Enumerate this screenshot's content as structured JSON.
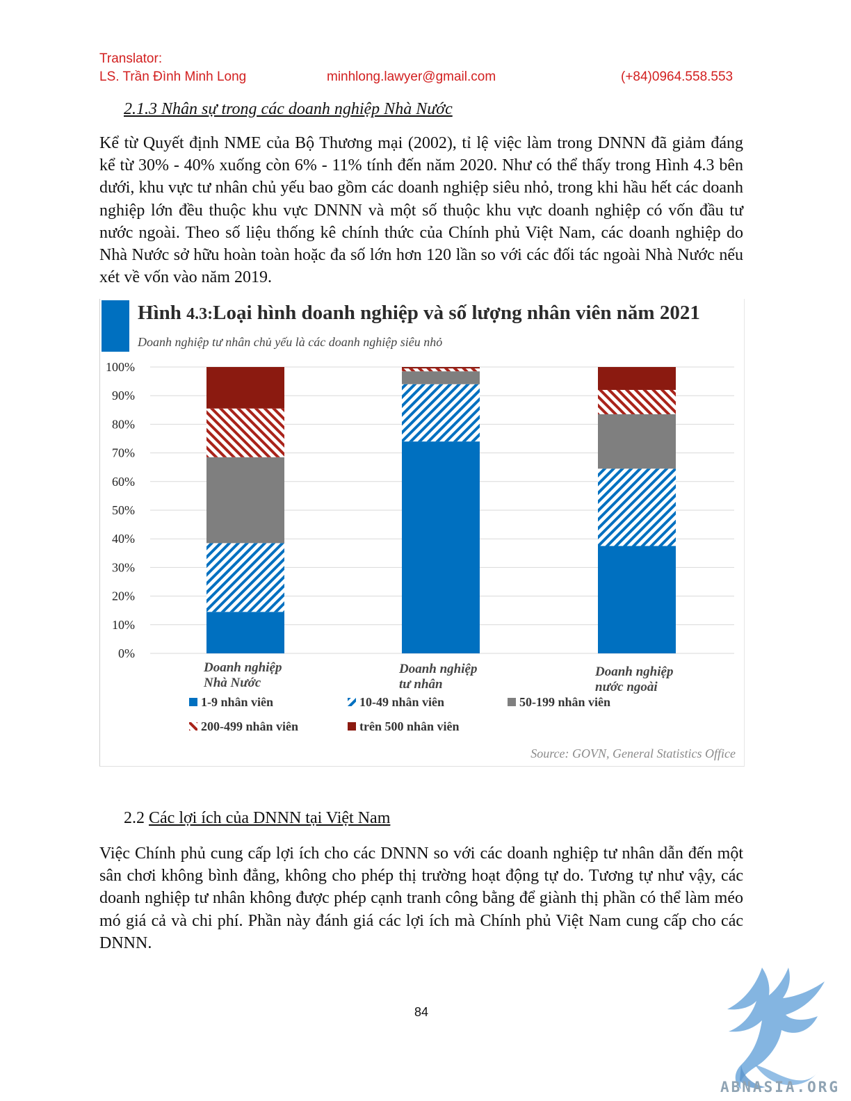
{
  "header": {
    "translator_label": "Translator:",
    "name": "LS. Trần Đình Minh Long",
    "email": "minhlong.lawyer@gmail.com",
    "phone": "(+84)0964.558.553"
  },
  "section1": {
    "title": "2.1.3 Nhân sự trong các doanh nghiệp Nhà Nước",
    "paragraph": "Kể từ Quyết định NME của Bộ Thương mại (2002), tỉ lệ việc làm trong DNNN đã giảm đáng kể từ 30% - 40% xuống còn 6% - 11% tính đến năm 2020. Như có thể thấy trong Hình 4.3 bên dưới, khu vực tư nhân chủ yếu bao gồm các doanh nghiệp siêu nhỏ, trong khi hầu hết các doanh nghiệp lớn đều thuộc khu vực DNNN và một số thuộc khu vực doanh nghiệp có vốn đầu tư nước ngoài. Theo số liệu thống kê chính thức của Chính phủ Việt Nam, các doanh nghiệp do Nhà Nước sở hữu hoàn toàn hoặc đa số lớn hơn 120 lần so với các đối tác ngoài Nhà Nước nếu xét về vốn vào năm 2019."
  },
  "chart_data": {
    "type": "bar",
    "stacked": true,
    "title_prefix": "Hình",
    "title_number": "4.3:",
    "title": "Loại hình doanh nghiệp và số lượng nhân viên năm 2021",
    "subtitle": "Doanh nghiệp tư nhân chủ yếu là các doanh nghiệp siêu nhỏ",
    "source": "Source: GOVN, General Statistics Office",
    "yticks": [
      "0%",
      "10%",
      "20%",
      "30%",
      "40%",
      "50%",
      "60%",
      "70%",
      "80%",
      "90%",
      "100%"
    ],
    "ylim": [
      0,
      100
    ],
    "categories": [
      [
        "Doanh nghiệp",
        "Nhà Nước"
      ],
      [
        "Doanh nghiệp",
        "tư nhân"
      ],
      [
        "Doanh nghiệp",
        "nước ngoài"
      ]
    ],
    "series": [
      {
        "name": "1-9 nhân viên",
        "pattern": "solid",
        "color": "#0070c0",
        "values": [
          14.5,
          74.0,
          37.5
        ]
      },
      {
        "name": "10-49 nhân viên",
        "pattern": "hatch",
        "color": "#0070c0",
        "values": [
          24.0,
          20.0,
          27.0
        ]
      },
      {
        "name": "50-199 nhân viên",
        "pattern": "solid",
        "color": "#7f7f7f",
        "values": [
          30.0,
          4.5,
          19.0
        ]
      },
      {
        "name": "200-499 nhân viên",
        "pattern": "hatch",
        "color": "#a9231a",
        "values": [
          17.0,
          1.0,
          8.5
        ]
      },
      {
        "name": "trên 500 nhân viên",
        "pattern": "solid",
        "color": "#8b1a10",
        "values": [
          14.5,
          0.5,
          8.0
        ]
      }
    ],
    "legend_position": "bottom",
    "grid": true
  },
  "section2": {
    "number": "2.2",
    "title": "Các lợi ích của DNNN tại Việt Nam",
    "paragraph": "Việc Chính phủ cung cấp lợi ích cho các DNNN so với các doanh nghiệp tư nhân dẫn đến một sân chơi không bình đẳng, không cho phép thị trường hoạt động tự do. Tương tự như vậy, các doanh nghiệp tư nhân không được phép cạnh tranh công bằng để giành thị phần có thể làm méo mó giá cả và chi phí. Phần này đánh giá các lợi ích mà Chính phủ Việt Nam cung cấp cho các DNNN."
  },
  "footer": {
    "page_number": "84",
    "logo_text": "ABNASIA.ORG",
    "logo_icon": "griffin-logo-icon",
    "logo_color": "#6fa8dc"
  }
}
